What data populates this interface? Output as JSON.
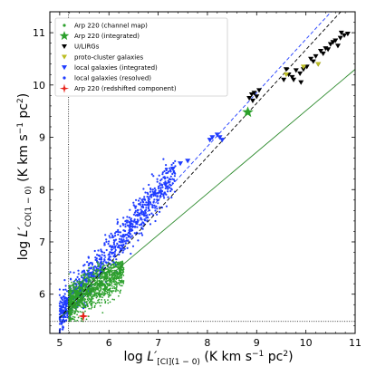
{
  "chart_data": {
    "type": "scatter",
    "title": "",
    "xlabel": {
      "prefix": "log ",
      "symbol": "L′",
      "subscript": "[CI](1 − 0)",
      "units_open": " (K km s",
      "exp1": "−1",
      "units_mid": " pc",
      "exp2": "2",
      "units_close": ")"
    },
    "ylabel": {
      "prefix": "log ",
      "symbol": "L′",
      "subscript": "CO(1 − 0)",
      "units_open": " (K km s",
      "exp1": "−1",
      "units_mid": " pc",
      "exp2": "2",
      "units_close": ")"
    },
    "xlim": [
      4.8,
      11.0
    ],
    "ylim": [
      5.25,
      11.4
    ],
    "xticks": [
      5,
      6,
      7,
      8,
      9,
      10,
      11
    ],
    "yticks": [
      6,
      7,
      8,
      9,
      10,
      11
    ],
    "grid": false,
    "legend_position": "top-left",
    "legend": [
      {
        "label": "Arp 220 (channel map)",
        "color": "#2ca02c",
        "marker": "dot"
      },
      {
        "label": "Arp 220 (integrated)",
        "color": "#2ca02c",
        "marker": "star"
      },
      {
        "label": "U/LIRGs",
        "color": "#000000",
        "marker": "tri_down"
      },
      {
        "label": "proto-cluster galaxies",
        "color": "#bcbd22",
        "marker": "tri_down"
      },
      {
        "label": "local galaxies (integrated)",
        "color": "#1f3cff",
        "marker": "tri_down"
      },
      {
        "label": "local galaxies (resolved)",
        "color": "#1f3cff",
        "marker": "dot"
      },
      {
        "label": "Arp 220 (redshifted component)",
        "color": "#e8221a",
        "marker": "star4"
      }
    ],
    "reference_lines": [
      {
        "name": "green-fit",
        "color": "#2e8b2e",
        "style": "solid",
        "points": [
          [
            5.0,
            5.55
          ],
          [
            11.0,
            10.3
          ]
        ]
      },
      {
        "name": "black-dashed",
        "color": "#000000",
        "style": "dashed",
        "points": [
          [
            5.0,
            5.55
          ],
          [
            11.0,
            11.7
          ]
        ]
      },
      {
        "name": "blue-dashed",
        "color": "#1f3cff",
        "style": "dashed",
        "points": [
          [
            5.0,
            5.75
          ],
          [
            11.0,
            11.9
          ]
        ]
      },
      {
        "name": "x-threshold",
        "color": "#000000",
        "style": "dotted",
        "points": [
          [
            5.18,
            5.25
          ],
          [
            5.18,
            11.4
          ]
        ]
      },
      {
        "name": "y-threshold",
        "color": "#000000",
        "style": "dotted",
        "points": [
          [
            4.8,
            5.48
          ],
          [
            11.0,
            5.48
          ]
        ]
      }
    ],
    "series": [
      {
        "name": "Arp 220 (integrated)",
        "color": "#2ca02c",
        "marker": "star",
        "x": [
          8.82
        ],
        "y": [
          9.48
        ]
      },
      {
        "name": "Arp 220 (redshifted component)",
        "color": "#e8221a",
        "marker": "star4",
        "x": [
          5.48
        ],
        "y": [
          5.58
        ]
      },
      {
        "name": "U/LIRGs",
        "color": "#000000",
        "marker": "tri_down",
        "x": [
          8.85,
          8.9,
          8.95,
          9.0,
          9.05,
          8.92,
          9.55,
          9.65,
          9.72,
          9.8,
          9.88,
          9.95,
          10.02,
          9.6,
          9.75,
          10.1,
          10.2,
          10.3,
          10.4,
          10.5,
          10.6,
          10.7,
          10.78,
          10.85,
          10.55,
          10.35,
          10.25,
          10.65,
          10.45,
          10.72,
          10.15,
          9.9
        ],
        "y": [
          9.75,
          9.82,
          9.85,
          9.78,
          9.9,
          9.7,
          10.1,
          10.2,
          10.15,
          10.28,
          10.22,
          10.3,
          10.35,
          10.3,
          10.1,
          10.5,
          10.55,
          10.65,
          10.7,
          10.78,
          10.85,
          10.9,
          10.95,
          10.98,
          10.82,
          10.6,
          10.4,
          10.75,
          10.68,
          11.0,
          10.45,
          10.05
        ]
      },
      {
        "name": "proto-cluster galaxies",
        "color": "#bcbd22",
        "marker": "tri_down",
        "x": [
          9.6,
          9.95,
          10.25
        ],
        "y": [
          10.2,
          10.35,
          10.4
        ]
      },
      {
        "name": "local galaxies (integrated)",
        "color": "#1f3cff",
        "marker": "tri_down",
        "x": [
          7.3,
          7.15,
          7.6,
          8.05,
          8.1,
          8.2,
          8.25,
          8.3,
          7.05,
          7.45
        ],
        "y": [
          8.4,
          8.1,
          8.55,
          8.95,
          9.0,
          9.05,
          9.0,
          8.95,
          7.95,
          8.5
        ]
      }
    ],
    "resolved_cloud": {
      "name": "local galaxies (resolved)",
      "color": "#1f3cff",
      "x_range": [
        5.0,
        7.35
      ],
      "y_at_x_min": 5.6,
      "slope": 1.17,
      "scatter": 0.18
    },
    "channel_map_cloud": {
      "name": "Arp 220 (channel map)",
      "color": "#2ca02c",
      "x_range": [
        5.18,
        6.3
      ],
      "y_range": [
        5.48,
        6.5
      ]
    }
  }
}
